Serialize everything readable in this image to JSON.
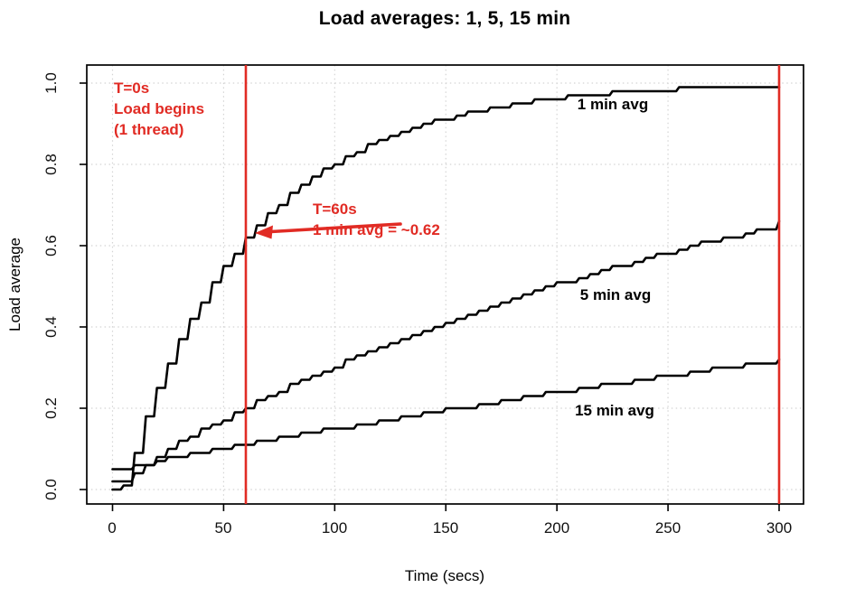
{
  "colors": {
    "accent_red": "#e12b24",
    "curve_black": "#000000",
    "grid_gray": "#d4d4d4",
    "background": "#ffffff"
  },
  "annotations": {
    "t0": {
      "line1": "T=0s",
      "line2": "Load begins",
      "line3": "(1 thread)"
    },
    "t60": {
      "line1": "T=60s",
      "line2": "1 min avg = ~0.62"
    }
  },
  "chart_data": {
    "type": "line",
    "title": "Load averages: 1, 5, 15 min",
    "xlabel": "Time (secs)",
    "ylabel": "Load average",
    "xlim": [
      -12,
      312
    ],
    "ylim": [
      -0.04,
      1.04
    ],
    "grid": "dotted at every tick",
    "legend_position": "labels drawn next to curves",
    "x_ticks": [
      0,
      50,
      100,
      150,
      200,
      250,
      300
    ],
    "y_ticks": [
      0.0,
      0.2,
      0.4,
      0.6,
      0.8,
      1.0
    ],
    "y_tick_labels": [
      "0.0",
      "0.2",
      "0.4",
      "0.6",
      "0.8",
      "1.0"
    ],
    "vlines": [
      {
        "t": 60
      },
      {
        "t": 300
      }
    ],
    "x": [
      0,
      5,
      10,
      15,
      20,
      25,
      30,
      35,
      40,
      45,
      50,
      55,
      60,
      65,
      70,
      75,
      80,
      85,
      90,
      95,
      100,
      105,
      110,
      115,
      120,
      125,
      130,
      135,
      140,
      145,
      150,
      155,
      160,
      165,
      170,
      175,
      180,
      185,
      190,
      195,
      200,
      205,
      210,
      215,
      220,
      225,
      230,
      235,
      240,
      245,
      250,
      255,
      260,
      265,
      270,
      275,
      280,
      285,
      290,
      295,
      300
    ],
    "series": [
      {
        "id": "1min",
        "name": "1 min avg",
        "values": [
          0.0,
          0.01,
          0.09,
          0.18,
          0.25,
          0.31,
          0.37,
          0.42,
          0.46,
          0.51,
          0.55,
          0.58,
          0.62,
          0.65,
          0.68,
          0.7,
          0.73,
          0.75,
          0.77,
          0.79,
          0.8,
          0.82,
          0.83,
          0.85,
          0.86,
          0.87,
          0.88,
          0.89,
          0.9,
          0.91,
          0.91,
          0.92,
          0.93,
          0.93,
          0.94,
          0.94,
          0.95,
          0.95,
          0.96,
          0.96,
          0.96,
          0.97,
          0.97,
          0.97,
          0.97,
          0.98,
          0.98,
          0.98,
          0.98,
          0.98,
          0.98,
          0.99,
          0.99,
          0.99,
          0.99,
          0.99,
          0.99,
          0.99,
          0.99,
          0.99,
          0.99
        ]
      },
      {
        "id": "5min",
        "name": "5 min avg",
        "values": [
          0.02,
          0.02,
          0.04,
          0.06,
          0.08,
          0.1,
          0.12,
          0.13,
          0.15,
          0.16,
          0.17,
          0.19,
          0.2,
          0.22,
          0.23,
          0.24,
          0.26,
          0.27,
          0.28,
          0.29,
          0.3,
          0.32,
          0.33,
          0.34,
          0.35,
          0.36,
          0.37,
          0.38,
          0.39,
          0.4,
          0.41,
          0.42,
          0.43,
          0.44,
          0.45,
          0.46,
          0.47,
          0.48,
          0.49,
          0.5,
          0.51,
          0.51,
          0.52,
          0.53,
          0.54,
          0.55,
          0.55,
          0.56,
          0.57,
          0.58,
          0.58,
          0.59,
          0.6,
          0.61,
          0.61,
          0.62,
          0.62,
          0.63,
          0.64,
          0.64,
          0.66
        ]
      },
      {
        "id": "15min",
        "name": "15 min avg",
        "values": [
          0.05,
          0.05,
          0.06,
          0.06,
          0.07,
          0.08,
          0.08,
          0.09,
          0.09,
          0.1,
          0.1,
          0.11,
          0.11,
          0.12,
          0.12,
          0.13,
          0.13,
          0.14,
          0.14,
          0.15,
          0.15,
          0.15,
          0.16,
          0.16,
          0.17,
          0.17,
          0.18,
          0.18,
          0.19,
          0.19,
          0.2,
          0.2,
          0.2,
          0.21,
          0.21,
          0.22,
          0.22,
          0.23,
          0.23,
          0.24,
          0.24,
          0.24,
          0.25,
          0.25,
          0.26,
          0.26,
          0.26,
          0.27,
          0.27,
          0.28,
          0.28,
          0.28,
          0.29,
          0.29,
          0.3,
          0.3,
          0.3,
          0.31,
          0.31,
          0.31,
          0.32
        ]
      }
    ]
  }
}
